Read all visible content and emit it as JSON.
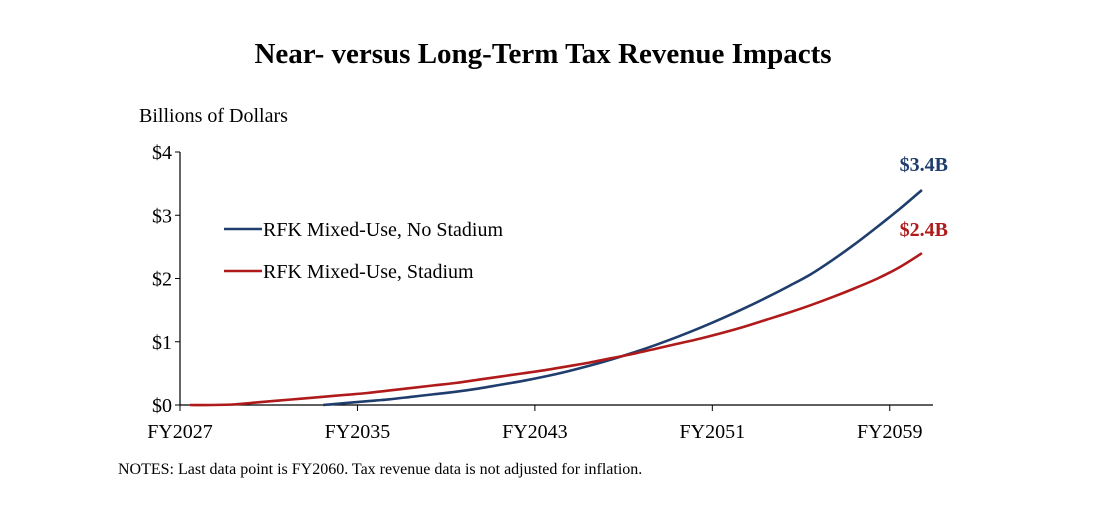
{
  "chart_data": {
    "type": "line",
    "title": "Near- versus Long-Term Tax Revenue Impacts",
    "ylabel": "Billions of Dollars",
    "xlabel": "",
    "ylim": [
      0,
      4
    ],
    "yticks": [
      0,
      1,
      2,
      3,
      4
    ],
    "ytick_labels": [
      "$0",
      "$1",
      "$2",
      "$3",
      "$4"
    ],
    "xtick_labels": [
      "FY2027",
      "FY2035",
      "FY2043",
      "FY2051",
      "FY2059"
    ],
    "xtick_years": [
      2027,
      2035,
      2043,
      2051,
      2059
    ],
    "x_range": [
      2027,
      2060
    ],
    "legend_position": "upper-left",
    "grid": false,
    "x": [
      2027,
      2028,
      2029,
      2030,
      2031,
      2032,
      2033,
      2034,
      2035,
      2036,
      2037,
      2038,
      2039,
      2040,
      2041,
      2042,
      2043,
      2044,
      2045,
      2046,
      2047,
      2048,
      2049,
      2050,
      2051,
      2052,
      2053,
      2054,
      2055,
      2056,
      2057,
      2058,
      2059,
      2060
    ],
    "series": [
      {
        "name": "RFK Mixed-Use, No Stadium",
        "color": "#1f3d6d",
        "end_label": "$3.4B",
        "values": [
          null,
          null,
          null,
          null,
          null,
          null,
          0.0,
          0.03,
          0.06,
          0.09,
          0.13,
          0.17,
          0.21,
          0.26,
          0.32,
          0.38,
          0.45,
          0.53,
          0.62,
          0.72,
          0.83,
          0.95,
          1.08,
          1.22,
          1.37,
          1.53,
          1.7,
          1.88,
          2.07,
          2.3,
          2.55,
          2.82,
          3.1,
          3.4
        ]
      },
      {
        "name": "RFK Mixed-Use, Stadium",
        "color": "#b01a1a",
        "end_label": "$2.4B",
        "values": [
          0,
          0,
          0.01,
          0.04,
          0.07,
          0.1,
          0.13,
          0.16,
          0.19,
          0.23,
          0.27,
          0.31,
          0.35,
          0.4,
          0.45,
          0.5,
          0.55,
          0.61,
          0.67,
          0.74,
          0.81,
          0.89,
          0.97,
          1.05,
          1.14,
          1.24,
          1.35,
          1.46,
          1.58,
          1.71,
          1.85,
          2.0,
          2.18,
          2.4
        ]
      }
    ],
    "note": "NOTES: Last data point is FY2060. Tax revenue data is not adjusted for inflation."
  }
}
